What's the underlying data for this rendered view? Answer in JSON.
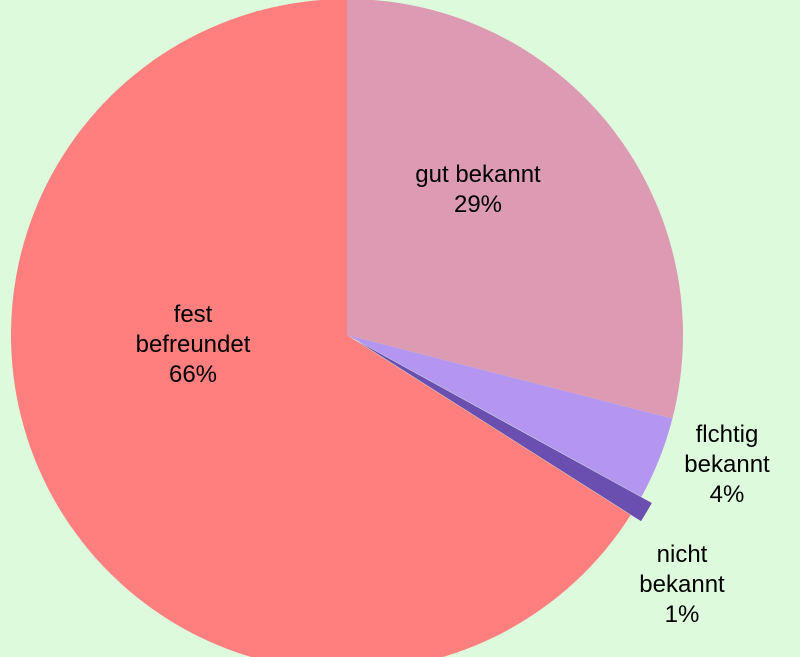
{
  "chart_data": {
    "type": "pie",
    "categories": [
      "gut bekannt",
      "flchtig bekannt",
      "nicht bekannt",
      "fest befreundet"
    ],
    "values": [
      29,
      4,
      1,
      66
    ],
    "value_labels": [
      "29%",
      "4%",
      "1%",
      "66%"
    ],
    "colors": [
      "#dd9bb3",
      "#b496f0",
      "#6a4fb0",
      "#ff7f7f"
    ],
    "start_angle": 0,
    "direction": "clockwise"
  }
}
